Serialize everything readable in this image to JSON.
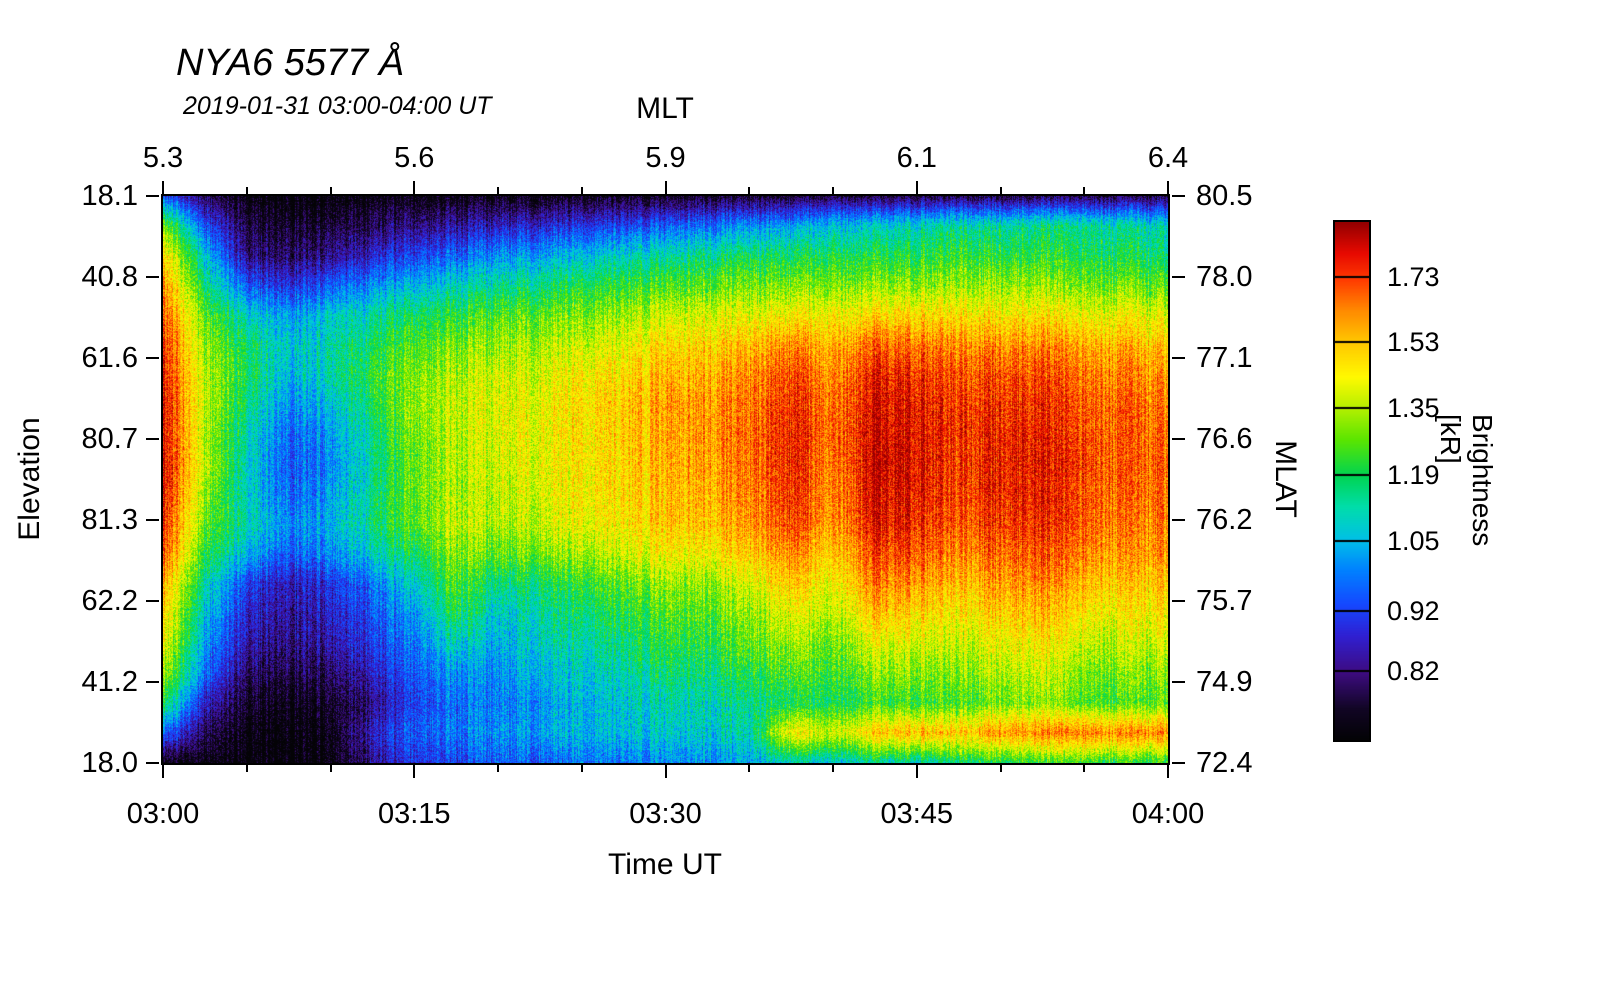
{
  "title": "NYA6 5577 Å",
  "subtitle": "2019-01-31 03:00-04:00 UT",
  "chart_data": {
    "type": "heatmap",
    "title": "NYA6 5577 Å",
    "subtitle": "2019-01-31 03:00-04:00 UT",
    "x_axis": {
      "label": "Time UT",
      "ticks": [
        "03:00",
        "03:15",
        "03:30",
        "03:45",
        "04:00"
      ],
      "range_minutes": [
        0,
        60
      ]
    },
    "top_axis": {
      "label": "MLT",
      "ticks": [
        5.3,
        5.6,
        5.9,
        6.1,
        6.4
      ]
    },
    "y_axis": {
      "label": "Elevation",
      "ticks": [
        18.1,
        40.8,
        61.6,
        80.7,
        81.3,
        62.2,
        41.2,
        18.0
      ],
      "description": "meridian scan: north horizon 18.1 through zenith to south horizon 18.0"
    },
    "right_axis": {
      "label": "MLAT",
      "ticks": [
        80.5,
        78.0,
        77.1,
        76.6,
        76.2,
        75.7,
        74.9,
        72.4
      ]
    },
    "colorbar": {
      "label": "Brightness [kR]",
      "ticks": [
        1.73,
        1.53,
        1.35,
        1.19,
        1.05,
        0.92,
        0.82
      ],
      "scale": "log",
      "range": [
        0.72,
        1.92
      ]
    },
    "grid": {
      "cols": 25,
      "rows": 20,
      "x_minutes": [
        0,
        2.5,
        5,
        7.5,
        10,
        12.5,
        15,
        17.5,
        20,
        22.5,
        25,
        27.5,
        30,
        32.5,
        35,
        37.5,
        40,
        42.5,
        45,
        47.5,
        50,
        52.5,
        55,
        57.5,
        60
      ],
      "row0": "north horizon 18.1",
      "row_last": "south horizon 18.0"
    },
    "values_kR": [
      [
        0.95,
        0.78,
        0.73,
        0.72,
        0.72,
        0.73,
        0.73,
        0.74,
        0.74,
        0.74,
        0.75,
        0.75,
        0.75,
        0.76,
        0.76,
        0.76,
        0.77,
        0.77,
        0.78,
        0.78,
        0.78,
        0.79,
        0.79,
        0.78,
        0.78
      ],
      [
        1.3,
        0.92,
        0.78,
        0.76,
        0.77,
        0.79,
        0.82,
        0.84,
        0.86,
        0.88,
        0.9,
        0.92,
        0.95,
        0.97,
        1.0,
        1.02,
        1.05,
        1.08,
        1.1,
        1.12,
        1.13,
        1.15,
        1.15,
        1.12,
        1.1
      ],
      [
        1.5,
        1.05,
        0.82,
        0.8,
        0.83,
        0.87,
        0.92,
        0.96,
        1.0,
        1.03,
        1.06,
        1.1,
        1.12,
        1.15,
        1.17,
        1.18,
        1.18,
        1.2,
        1.2,
        1.22,
        1.22,
        1.22,
        1.2,
        1.18,
        1.16
      ],
      [
        1.62,
        1.15,
        0.95,
        0.9,
        0.95,
        1.0,
        1.05,
        1.1,
        1.13,
        1.16,
        1.2,
        1.22,
        1.25,
        1.27,
        1.28,
        1.3,
        1.28,
        1.32,
        1.32,
        1.32,
        1.33,
        1.33,
        1.3,
        1.28,
        1.26
      ],
      [
        1.7,
        1.25,
        1.1,
        1.02,
        1.08,
        1.12,
        1.18,
        1.22,
        1.25,
        1.28,
        1.3,
        1.33,
        1.38,
        1.4,
        1.4,
        1.45,
        1.42,
        1.48,
        1.48,
        1.46,
        1.47,
        1.47,
        1.44,
        1.42,
        1.4
      ],
      [
        1.76,
        1.3,
        1.18,
        1.08,
        1.12,
        1.18,
        1.25,
        1.3,
        1.32,
        1.35,
        1.38,
        1.42,
        1.48,
        1.5,
        1.52,
        1.62,
        1.52,
        1.68,
        1.65,
        1.6,
        1.62,
        1.62,
        1.58,
        1.54,
        1.52
      ],
      [
        1.8,
        1.34,
        1.2,
        1.05,
        1.12,
        1.22,
        1.3,
        1.35,
        1.38,
        1.4,
        1.45,
        1.48,
        1.55,
        1.56,
        1.6,
        1.72,
        1.58,
        1.78,
        1.75,
        1.68,
        1.72,
        1.72,
        1.66,
        1.62,
        1.6
      ],
      [
        1.82,
        1.35,
        1.16,
        1.0,
        1.06,
        1.18,
        1.32,
        1.38,
        1.4,
        1.42,
        1.48,
        1.52,
        1.58,
        1.6,
        1.63,
        1.76,
        1.62,
        1.82,
        1.8,
        1.72,
        1.76,
        1.76,
        1.7,
        1.66,
        1.64
      ],
      [
        1.83,
        1.32,
        1.12,
        0.96,
        1.02,
        1.14,
        1.3,
        1.36,
        1.4,
        1.43,
        1.47,
        1.51,
        1.57,
        1.6,
        1.64,
        1.78,
        1.62,
        1.84,
        1.81,
        1.73,
        1.78,
        1.79,
        1.72,
        1.67,
        1.66
      ],
      [
        1.85,
        1.35,
        1.1,
        0.95,
        1.0,
        1.12,
        1.28,
        1.36,
        1.38,
        1.42,
        1.46,
        1.5,
        1.56,
        1.58,
        1.63,
        1.78,
        1.6,
        1.85,
        1.82,
        1.72,
        1.79,
        1.8,
        1.74,
        1.66,
        1.68
      ],
      [
        1.82,
        1.3,
        1.1,
        0.96,
        1.02,
        1.14,
        1.28,
        1.35,
        1.36,
        1.4,
        1.45,
        1.48,
        1.54,
        1.56,
        1.61,
        1.76,
        1.58,
        1.83,
        1.8,
        1.7,
        1.78,
        1.79,
        1.72,
        1.65,
        1.66
      ],
      [
        1.78,
        1.25,
        1.12,
        1.0,
        1.05,
        1.15,
        1.26,
        1.38,
        1.34,
        1.38,
        1.42,
        1.46,
        1.52,
        1.53,
        1.58,
        1.72,
        1.56,
        1.8,
        1.77,
        1.67,
        1.75,
        1.76,
        1.7,
        1.62,
        1.64
      ],
      [
        1.7,
        1.2,
        1.05,
        0.95,
        1.0,
        1.08,
        1.18,
        1.32,
        1.26,
        1.3,
        1.34,
        1.38,
        1.44,
        1.44,
        1.5,
        1.62,
        1.48,
        1.72,
        1.7,
        1.6,
        1.68,
        1.7,
        1.64,
        1.58,
        1.6
      ],
      [
        1.58,
        1.1,
        0.92,
        0.86,
        0.9,
        0.97,
        1.08,
        1.26,
        1.14,
        1.18,
        1.22,
        1.27,
        1.32,
        1.32,
        1.38,
        1.52,
        1.4,
        1.63,
        1.6,
        1.52,
        1.6,
        1.62,
        1.56,
        1.5,
        1.53
      ],
      [
        1.5,
        1.05,
        0.88,
        0.84,
        0.87,
        0.93,
        1.02,
        1.2,
        1.07,
        1.13,
        1.16,
        1.2,
        1.26,
        1.26,
        1.31,
        1.42,
        1.33,
        1.52,
        1.5,
        1.43,
        1.52,
        1.54,
        1.47,
        1.43,
        1.46
      ],
      [
        1.44,
        1.0,
        0.85,
        0.82,
        0.85,
        0.9,
        0.98,
        1.1,
        1.03,
        1.1,
        1.12,
        1.16,
        1.21,
        1.21,
        1.26,
        1.33,
        1.26,
        1.41,
        1.39,
        1.36,
        1.43,
        1.46,
        1.39,
        1.36,
        1.39
      ],
      [
        1.35,
        0.95,
        0.8,
        0.78,
        0.8,
        0.86,
        0.95,
        1.01,
        1.0,
        1.06,
        1.08,
        1.11,
        1.16,
        1.16,
        1.19,
        1.26,
        1.21,
        1.31,
        1.31,
        1.29,
        1.36,
        1.39,
        1.31,
        1.29,
        1.31
      ],
      [
        1.2,
        0.85,
        0.76,
        0.74,
        0.76,
        0.81,
        0.92,
        0.97,
        0.98,
        1.01,
        1.05,
        1.07,
        1.11,
        1.11,
        1.13,
        1.19,
        1.16,
        1.23,
        1.23,
        1.23,
        1.29,
        1.31,
        1.26,
        1.23,
        1.26
      ],
      [
        0.97,
        0.78,
        0.73,
        0.72,
        0.74,
        0.86,
        0.95,
        0.98,
        1.0,
        1.03,
        1.05,
        1.06,
        1.08,
        1.08,
        1.1,
        1.45,
        1.35,
        1.5,
        1.55,
        1.5,
        1.6,
        1.62,
        1.65,
        1.6,
        1.62
      ],
      [
        0.74,
        0.72,
        0.72,
        0.72,
        0.73,
        0.82,
        0.9,
        0.92,
        0.95,
        0.95,
        0.98,
        0.98,
        1.0,
        1.0,
        1.02,
        1.1,
        1.05,
        1.12,
        1.1,
        1.15,
        1.2,
        1.22,
        1.25,
        1.2,
        1.22
      ]
    ]
  }
}
